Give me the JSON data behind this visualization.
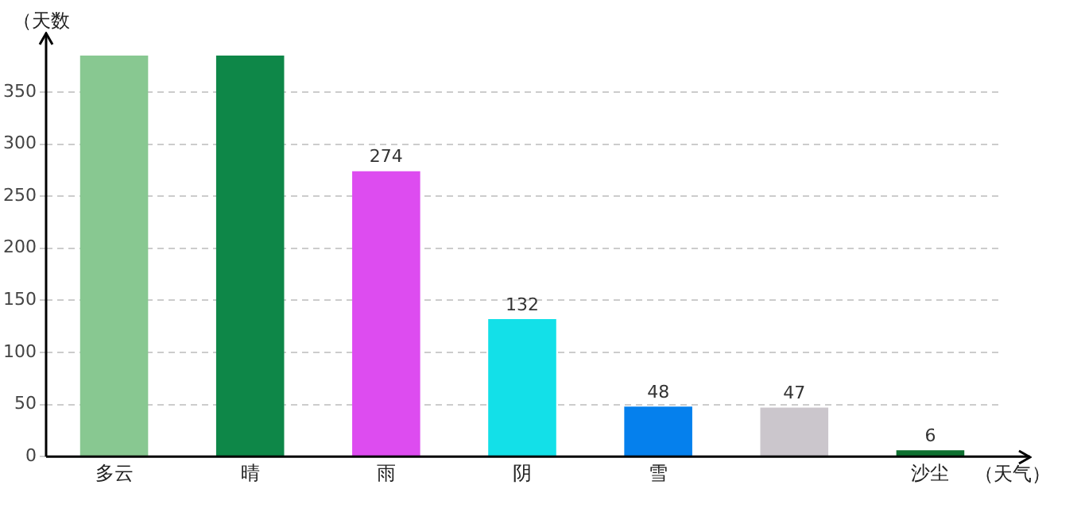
{
  "chart_data": {
    "type": "bar",
    "xlabel": "（天气）",
    "ylabel": "（天数",
    "categories": [
      "多云",
      "晴",
      "雨",
      "阴",
      "雪",
      null,
      "沙尘"
    ],
    "values": [
      385,
      385,
      274,
      132,
      48,
      47,
      6
    ],
    "colors": [
      "#88c891",
      "#0e8748",
      "#dd4cf0",
      "#13e0e8",
      "#0580ed",
      "#cbc6cc",
      "#0e7030"
    ],
    "value_labels": [
      null,
      null,
      "274",
      "132",
      "48",
      "47",
      "6"
    ],
    "ylim": [
      0,
      385
    ],
    "yticks": [
      0,
      50,
      100,
      150,
      200,
      250,
      300,
      350
    ],
    "grid": "y",
    "legend": false
  }
}
